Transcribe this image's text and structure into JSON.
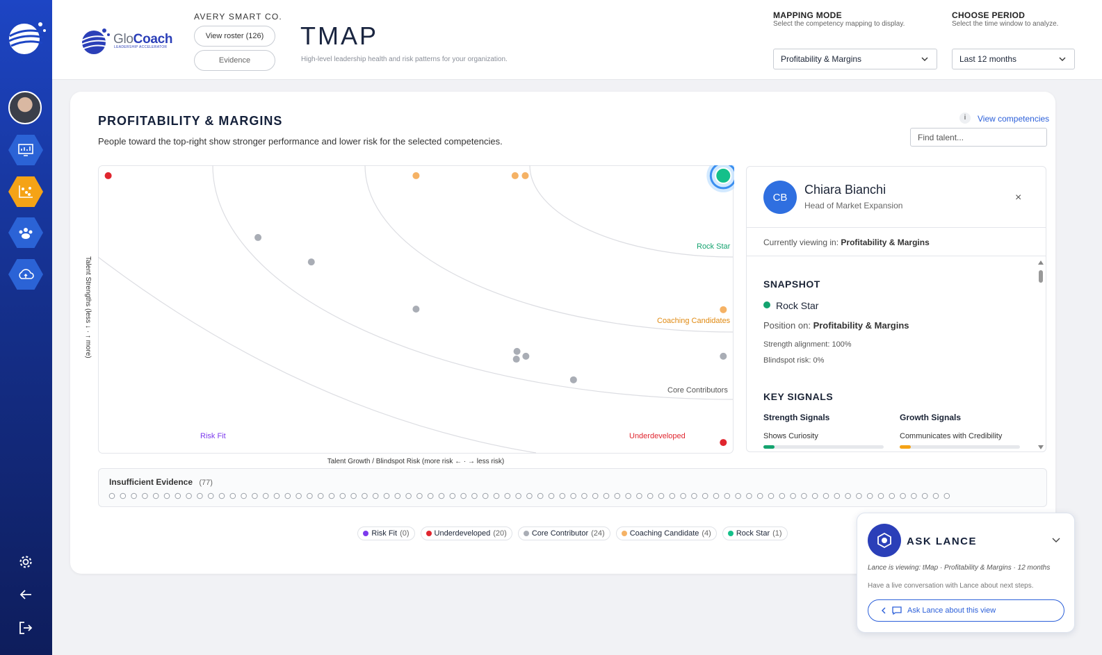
{
  "header": {
    "brand_prefix": "Glo",
    "brand_suffix": "Coach",
    "brand_tagline": "LEADERSHIP ACCELERATOR",
    "company": "AVERY SMART CO.",
    "roster_button": "View roster (126)",
    "evidence_button": "Evidence",
    "title": "TMAP",
    "subtitle": "High-level leadership health and risk patterns for your organization."
  },
  "mapping_mode": {
    "label": "MAPPING MODE",
    "hint": "Select the competency mapping to display.",
    "value": "Profitability & Margins"
  },
  "period": {
    "label": "CHOOSE PERIOD",
    "hint": "Select the time window to analyze.",
    "value": "Last 12 months"
  },
  "panel": {
    "title": "PROFITABILITY & MARGINS",
    "description": "People toward the top-right show stronger performance and lower risk for the selected competencies.",
    "view_competencies": "View competencies",
    "search_placeholder": "Find talent..."
  },
  "chart_data": {
    "type": "scatter",
    "x_label": "Talent Growth / Blindspot Risk (more risk ← · → less risk)",
    "y_label": "Talent Strengths (less ↓ · ↑ more)",
    "xlim": [
      0,
      100
    ],
    "ylim": [
      0,
      100
    ],
    "zones": [
      "Rock Star",
      "Coaching Candidates",
      "Core Contributors",
      "Underdeveloped",
      "Risk Fit"
    ],
    "series": [
      {
        "name": "Risk Fit",
        "count_label": "(0)",
        "color": "#7c3aed",
        "x": [],
        "y": []
      },
      {
        "name": "Underdeveloped",
        "count_label": "(20)",
        "color": "#e0262f",
        "x": [
          1.6,
          98.5
        ],
        "y": [
          96.4,
          3.6
        ]
      },
      {
        "name": "Core Contributor",
        "count_label": "(24)",
        "color": "#a9adb5",
        "x": [
          25.2,
          33.6,
          50.1,
          66.0,
          65.9,
          67.4,
          98.5,
          74.9
        ],
        "y": [
          74.9,
          66.4,
          50.0,
          35.3,
          32.6,
          33.6,
          33.6,
          25.4
        ]
      },
      {
        "name": "Coaching Candidate",
        "count_label": "(4)",
        "color": "#f5b265",
        "x": [
          50.1,
          65.7,
          67.3,
          98.5
        ],
        "y": [
          96.4,
          96.4,
          96.4,
          49.8
        ]
      },
      {
        "name": "Rock Star",
        "count_label": "(1)",
        "color": "#14c08a",
        "highlight": true,
        "x": [
          98.5
        ],
        "y": [
          96.4
        ]
      }
    ]
  },
  "insufficient": {
    "label": "Insufficient Evidence",
    "count": 77,
    "count_label": "(77)"
  },
  "profile": {
    "initials": "CB",
    "name": "Chiara Bianchi",
    "role": "Head of Market Expansion",
    "viewing_label": "Currently viewing in:",
    "viewing_value": "Profitability & Margins",
    "snapshot_title": "SNAPSHOT",
    "status": "Rock Star",
    "position_label": "Position on:",
    "position_value": "Profitability & Margins",
    "strength": "Strength alignment: 100%",
    "blindspot": "Blindspot risk: 0%",
    "key_signals": "KEY SIGNALS",
    "strength_signals": "Strength Signals",
    "growth_signals": "Growth Signals",
    "strength_item": "Shows Curiosity",
    "growth_item": "Communicates with Credibility"
  },
  "lance": {
    "title": "ASK LANCE",
    "viewing": "Lance is viewing: tMap · Profitability & Margins · 12 months",
    "description": "Have a live conversation with Lance about next steps.",
    "button": "Ask Lance about this view"
  }
}
